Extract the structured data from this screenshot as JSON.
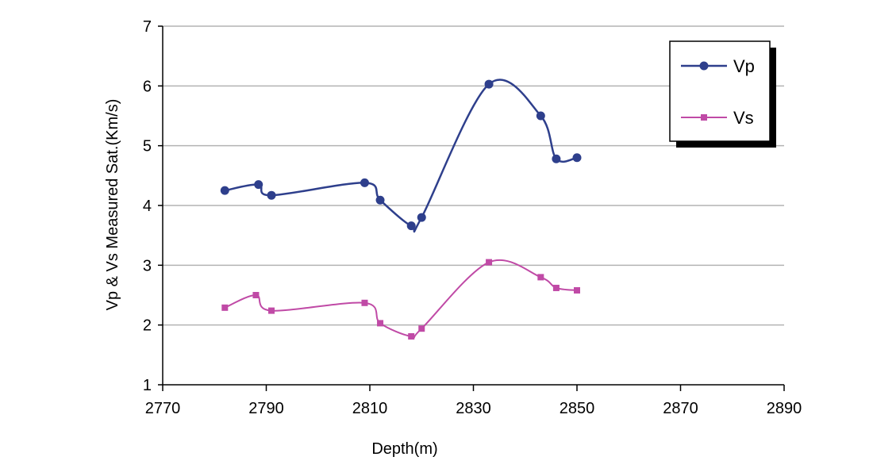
{
  "chart_data": {
    "type": "line",
    "title": "",
    "xlabel": "Depth(m)",
    "ylabel": "Vp & Vs Measured Sat.(Km/s)",
    "xlim": [
      2770,
      2890
    ],
    "ylim": [
      1,
      7
    ],
    "xticks": [
      2770,
      2790,
      2810,
      2830,
      2850,
      2870,
      2890
    ],
    "yticks": [
      1,
      2,
      3,
      4,
      5,
      6,
      7
    ],
    "grid": "horizontal",
    "legend_position": "top-right",
    "series": [
      {
        "name": "Vp",
        "color": "#2e3f8c",
        "marker": "circle",
        "points": [
          [
            2782,
            4.25
          ],
          [
            2788.5,
            4.35
          ],
          [
            2791,
            4.17
          ],
          [
            2809,
            4.38
          ],
          [
            2812,
            4.09
          ],
          [
            2818,
            3.66
          ],
          [
            2820,
            3.8
          ],
          [
            2833,
            6.03
          ],
          [
            2843,
            5.5
          ],
          [
            2846,
            4.78
          ],
          [
            2850,
            4.8
          ]
        ]
      },
      {
        "name": "Vs",
        "color": "#c04aa6",
        "marker": "square",
        "points": [
          [
            2782,
            2.29
          ],
          [
            2788,
            2.5
          ],
          [
            2791,
            2.24
          ],
          [
            2809,
            2.37
          ],
          [
            2812,
            2.03
          ],
          [
            2818,
            1.81
          ],
          [
            2820,
            1.94
          ],
          [
            2833,
            3.05
          ],
          [
            2843,
            2.8
          ],
          [
            2846,
            2.62
          ],
          [
            2850,
            2.58
          ]
        ]
      }
    ]
  }
}
